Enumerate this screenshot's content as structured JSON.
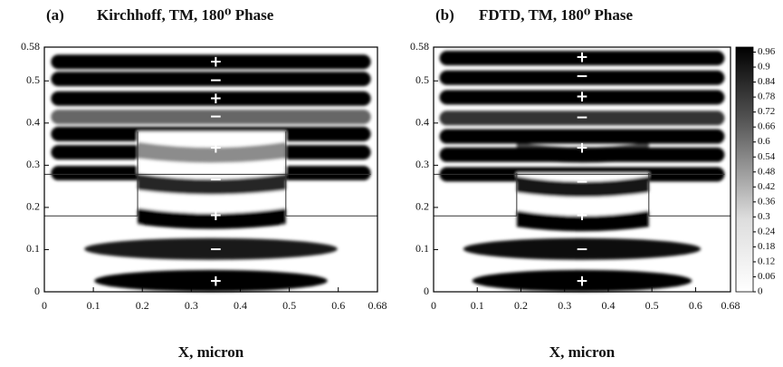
{
  "chart_data": [
    {
      "type": "heatmap",
      "panel_label": "(a)",
      "title": "Kirchhoff, TM, 180⁰ Phase",
      "xlabel": "X, micron",
      "xlim": [
        0,
        0.68
      ],
      "xticks": [
        0,
        0.1,
        0.2,
        0.3,
        0.4,
        0.5,
        0.6,
        0.68
      ],
      "ylim": [
        0,
        0.58
      ],
      "yticks": [
        0,
        0.1,
        0.2,
        0.3,
        0.4,
        0.5,
        0.58
      ],
      "annotations": [
        {
          "text": "+",
          "x": 0.35,
          "y": 0.545
        },
        {
          "text": "−",
          "x": 0.35,
          "y": 0.5
        },
        {
          "text": "+",
          "x": 0.35,
          "y": 0.458
        },
        {
          "text": "−",
          "x": 0.35,
          "y": 0.415
        },
        {
          "text": "+",
          "x": 0.35,
          "y": 0.34
        },
        {
          "text": "−",
          "x": 0.35,
          "y": 0.265
        },
        {
          "text": "+",
          "x": 0.35,
          "y": 0.18
        },
        {
          "text": "−",
          "x": 0.35,
          "y": 0.1
        },
        {
          "text": "+",
          "x": 0.35,
          "y": 0.025
        }
      ]
    },
    {
      "type": "heatmap",
      "panel_label": "(b)",
      "title": "FDTD, TM, 180⁰ Phase",
      "xlabel": "X, micron",
      "xlim": [
        0,
        0.68
      ],
      "xticks": [
        0,
        0.1,
        0.2,
        0.3,
        0.4,
        0.5,
        0.6,
        0.68
      ],
      "ylim": [
        0,
        0.58
      ],
      "yticks": [
        0,
        0.1,
        0.2,
        0.3,
        0.4,
        0.5,
        0.58
      ],
      "clim": [
        0,
        0.98
      ],
      "cticks": [
        0,
        0.06,
        0.12,
        0.18,
        0.24,
        0.3,
        0.36,
        0.42,
        0.48,
        0.54,
        0.6,
        0.66,
        0.72,
        0.78,
        0.84,
        0.9,
        0.96
      ],
      "annotations": [
        {
          "text": "+",
          "x": 0.34,
          "y": 0.555
        },
        {
          "text": "−",
          "x": 0.34,
          "y": 0.51
        },
        {
          "text": "+",
          "x": 0.34,
          "y": 0.462
        },
        {
          "text": "−",
          "x": 0.34,
          "y": 0.412
        },
        {
          "text": "+",
          "x": 0.34,
          "y": 0.34
        },
        {
          "text": "−",
          "x": 0.34,
          "y": 0.26
        },
        {
          "text": "+",
          "x": 0.34,
          "y": 0.18
        },
        {
          "text": "−",
          "x": 0.34,
          "y": 0.1
        },
        {
          "text": "+",
          "x": 0.34,
          "y": 0.025
        }
      ]
    }
  ]
}
